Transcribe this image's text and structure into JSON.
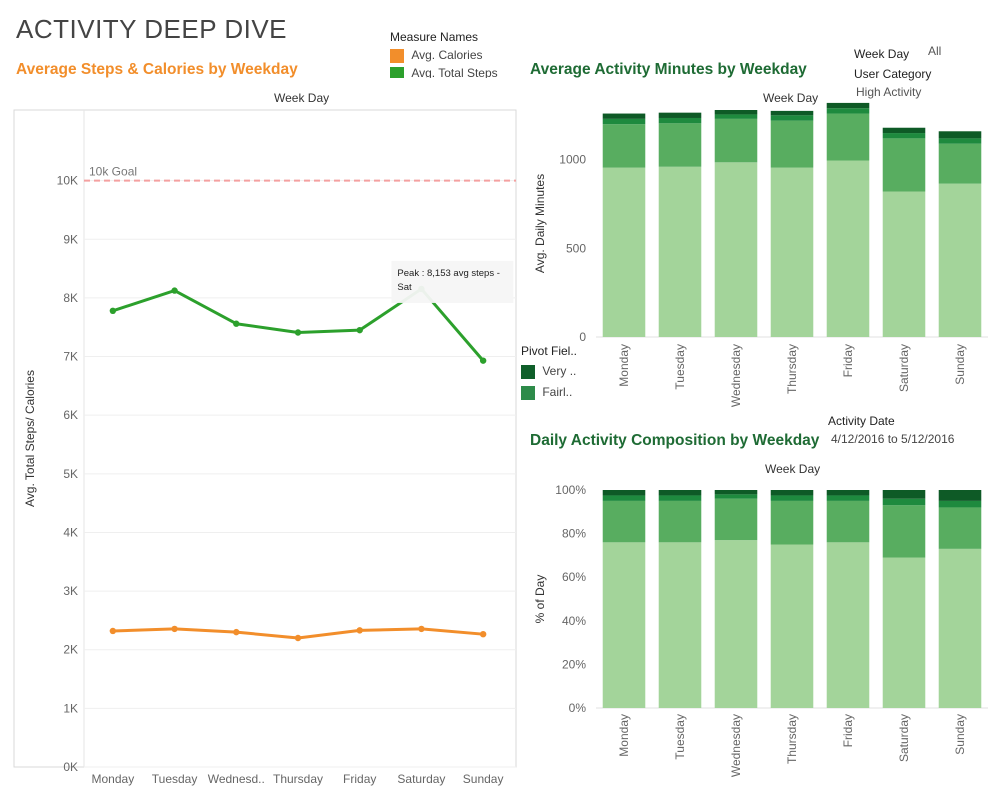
{
  "page_title": "ACTIVITY DEEP DIVE",
  "legend_measures": {
    "title": "Measure Names",
    "items": [
      {
        "label": "Avg. Calories",
        "color": "#f28e2b"
      },
      {
        "label": "Avg. Total Steps",
        "color": "#2ca02c"
      }
    ]
  },
  "filters": {
    "week_day": {
      "label": "Week Day",
      "value": "All"
    },
    "user_category": {
      "label": "User Category",
      "value": "High Activity"
    },
    "activity_date": {
      "label": "Activity Date",
      "value": "4/12/2016 to 5/12/2016"
    }
  },
  "pivot_legend": {
    "title": "Pivot Fiel..",
    "items": [
      {
        "label": "Very ..",
        "color": "#0f5f2a"
      },
      {
        "label": "Fairl..",
        "color": "#2e8b4a"
      }
    ]
  },
  "chart_data": [
    {
      "type": "line",
      "title": "Average Steps & Calories by Weekday",
      "top_label": "Week Day",
      "ylabel": "Avg. Total Steps/ Calories",
      "categories": [
        "Monday",
        "Tuesday",
        "Wednesd..",
        "Thursday",
        "Friday",
        "Saturday",
        "Sunday"
      ],
      "ylim": [
        0,
        11000
      ],
      "yticks": [
        "0K",
        "1K",
        "2K",
        "3K",
        "4K",
        "5K",
        "6K",
        "7K",
        "8K",
        "9K",
        "10K"
      ],
      "series": [
        {
          "name": "Avg. Total Steps",
          "color": "#2ca02c",
          "values": [
            7780,
            8125,
            7560,
            7410,
            7450,
            8153,
            6930
          ]
        },
        {
          "name": "Avg. Calories",
          "color": "#f28e2b",
          "values": [
            2320,
            2355,
            2300,
            2200,
            2330,
            2355,
            2265
          ]
        }
      ],
      "reference_line": {
        "label": "10k Goal",
        "value": 10000,
        "color": "#f4a0a0"
      },
      "annotation": {
        "line1": "Peak : 8,153 avg steps -",
        "line2": "Sat",
        "category": "Saturday"
      },
      "grid": true
    },
    {
      "type": "bar",
      "stacked": true,
      "title": "Average Activity Minutes by Weekday",
      "top_label": "Week Day",
      "ylabel": "Avg. Daily Minutes",
      "categories": [
        "Monday",
        "Tuesday",
        "Wednesday",
        "Thursday",
        "Friday",
        "Saturday",
        "Sunday"
      ],
      "ylim": [
        0,
        1280
      ],
      "yticks": [
        0,
        500,
        1000
      ],
      "series": [
        {
          "color": "#a3d49a",
          "values": [
            955,
            960,
            985,
            955,
            995,
            820,
            865
          ]
        },
        {
          "color": "#58ad60",
          "values": [
            245,
            245,
            245,
            265,
            265,
            300,
            225
          ]
        },
        {
          "color": "#1e8a3e",
          "values": [
            30,
            30,
            25,
            30,
            30,
            30,
            30
          ]
        },
        {
          "color": "#0e5a26",
          "values": [
            30,
            30,
            25,
            25,
            30,
            30,
            40
          ]
        }
      ]
    },
    {
      "type": "bar",
      "stacked": true,
      "title": "Daily Activity Composition by Weekday",
      "top_label": "Week Day",
      "ylabel": "% of Day",
      "categories": [
        "Monday",
        "Tuesday",
        "Wednesday",
        "Thursday",
        "Friday",
        "Saturday",
        "Sunday"
      ],
      "ylim": [
        0,
        100
      ],
      "yticks": [
        "0%",
        "20%",
        "40%",
        "60%",
        "80%",
        "100%"
      ],
      "series": [
        {
          "color": "#a3d49a",
          "values": [
            76,
            76,
            77,
            75,
            76,
            69,
            73
          ]
        },
        {
          "color": "#58ad60",
          "values": [
            19,
            19,
            19,
            20,
            19,
            24,
            19
          ]
        },
        {
          "color": "#1e8a3e",
          "values": [
            2.5,
            2.5,
            2,
            2.5,
            2.5,
            3,
            3
          ]
        },
        {
          "color": "#0e5a26",
          "values": [
            2.5,
            2.5,
            2,
            2.5,
            2.5,
            4,
            5
          ]
        }
      ]
    }
  ]
}
